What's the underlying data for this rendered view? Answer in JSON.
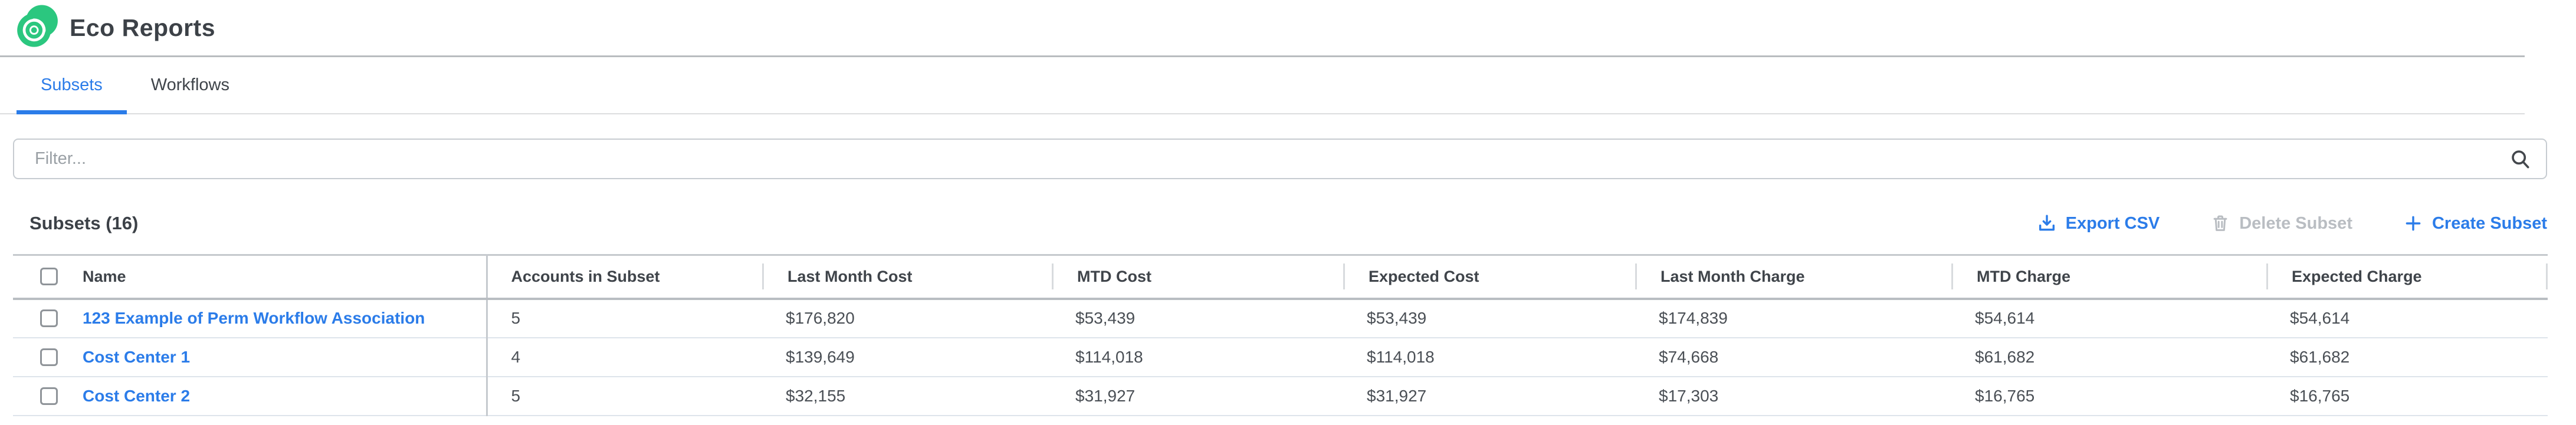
{
  "app": {
    "title": "Eco Reports"
  },
  "tabs": [
    {
      "label": "Subsets",
      "active": true
    },
    {
      "label": "Workflows",
      "active": false
    }
  ],
  "filter": {
    "placeholder": "Filter..."
  },
  "section": {
    "heading": "Subsets (16)"
  },
  "actions": {
    "export_label": "Export CSV",
    "delete_label": "Delete Subset",
    "create_label": "Create Subset"
  },
  "icons": {
    "logo": "eco-swirl",
    "search": "magnifier",
    "export": "download-tray",
    "delete": "trash-can",
    "create": "plus"
  },
  "colors": {
    "accent_blue": "#2b7ce9",
    "brand_green": "#2bc77f",
    "disabled_gray": "#b9bdc2",
    "row_divider": "#dee4eb",
    "header_divider": "#b9bdc2"
  },
  "table": {
    "columns": [
      "Name",
      "Accounts in Subset",
      "Last Month Cost",
      "MTD Cost",
      "Expected Cost",
      "Last Month Charge",
      "MTD Charge",
      "Expected Charge"
    ],
    "rows": [
      {
        "name": "123 Example of Perm Workflow Association",
        "accounts": "5",
        "last_month_cost": "$176,820",
        "mtd_cost": "$53,439",
        "expected_cost": "$53,439",
        "last_month_charge": "$174,839",
        "mtd_charge": "$54,614",
        "expected_charge": "$54,614"
      },
      {
        "name": "Cost Center 1",
        "accounts": "4",
        "last_month_cost": "$139,649",
        "mtd_cost": "$114,018",
        "expected_cost": "$114,018",
        "last_month_charge": "$74,668",
        "mtd_charge": "$61,682",
        "expected_charge": "$61,682"
      },
      {
        "name": "Cost Center 2",
        "accounts": "5",
        "last_month_cost": "$32,155",
        "mtd_cost": "$31,927",
        "expected_cost": "$31,927",
        "last_month_charge": "$17,303",
        "mtd_charge": "$16,765",
        "expected_charge": "$16,765"
      }
    ]
  }
}
